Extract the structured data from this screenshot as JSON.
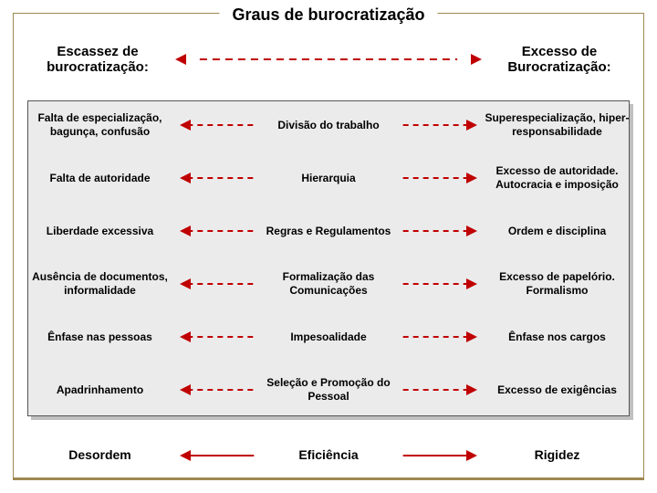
{
  "title": "Graus de burocratização",
  "header": {
    "left": "Escassez de burocratização:",
    "right": "Excesso de Burocratização:"
  },
  "rows": [
    {
      "left": "Falta de especialização, bagunça, confusão",
      "mid": "Divisão do trabalho",
      "right": "Superespecialização, hiper-responsabilidade"
    },
    {
      "left": "Falta de autoridade",
      "mid": "Hierarquia",
      "right": "Excesso de autoridade. Autocracia e imposição"
    },
    {
      "left": "Liberdade excessiva",
      "mid": "Regras e Regulamentos",
      "right": "Ordem e disciplina"
    },
    {
      "left": "Ausência de documentos, informalidade",
      "mid": "Formalização das Comunicações",
      "right": "Excesso de papelório. Formalismo"
    },
    {
      "left": "Ênfase nas pessoas",
      "mid": "Impesoalidade",
      "right": "Ênfase nos cargos"
    },
    {
      "left": "Apadrinhamento",
      "mid": "Seleção e Promoção do Pessoal",
      "right": "Excesso de exigências"
    }
  ],
  "footer": {
    "left": "Desordem",
    "mid": "Eficiência",
    "right": "Rigidez"
  },
  "style": {
    "arrow_color": "#c00000",
    "dash": "6 5",
    "header_dash": "8 6",
    "stroke_width": 2,
    "box_bg": "#ebebeb",
    "border_color": "#a08850",
    "font_row": 12,
    "font_header": 15,
    "font_title": 18
  }
}
